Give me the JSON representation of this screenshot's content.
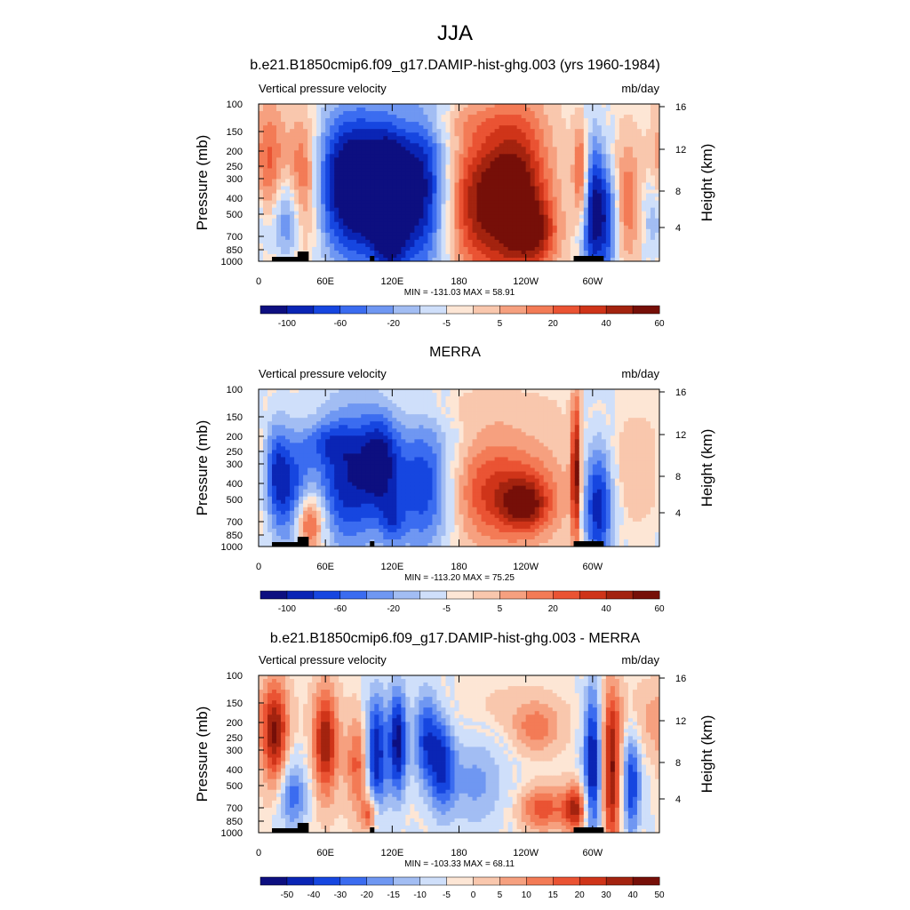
{
  "figure": {
    "title": "JJA"
  },
  "axes": {
    "pressure_label": "Pressure (mb)",
    "height_label": "Height (km)",
    "pressure_ticks": [
      100,
      150,
      200,
      250,
      300,
      400,
      500,
      700,
      850,
      1000
    ],
    "height_ticks": [
      4,
      8,
      12,
      16
    ],
    "x_ticks": [
      "0",
      "60E",
      "120E",
      "180",
      "120W",
      "60W"
    ],
    "x_tick_lon": [
      0,
      60,
      120,
      180,
      240,
      300
    ],
    "x_range": [
      0,
      360
    ]
  },
  "chart_data": [
    {
      "type": "heatmap",
      "title": "b.e21.B1850cmip6.f09_g17.DAMIP-hist-ghg.003 (yrs 1960-1984)",
      "variable": "Vertical pressure velocity",
      "units": "mb/day",
      "stats": "MIN = -131.03  MAX =  58.91",
      "colorbar_labels": [
        "-100",
        "-60",
        "-20",
        "-5",
        "5",
        "20",
        "40",
        "60"
      ]
    },
    {
      "type": "heatmap",
      "title": "MERRA",
      "variable": "Vertical pressure velocity",
      "units": "mb/day",
      "stats": "MIN = -113.20  MAX =  75.25",
      "colorbar_labels": [
        "-100",
        "-60",
        "-20",
        "-5",
        "5",
        "20",
        "40",
        "60"
      ]
    },
    {
      "type": "heatmap",
      "title": "b.e21.B1850cmip6.f09_g17.DAMIP-hist-ghg.003 - MERRA",
      "variable": "Vertical pressure velocity",
      "units": "mb/day",
      "stats": "MIN = -103.33  MAX =  68.11",
      "colorbar_labels": [
        "-50",
        "-40",
        "-30",
        "-20",
        "-15",
        "-10",
        "-5",
        "0",
        "5",
        "10",
        "15",
        "20",
        "30",
        "40",
        "50"
      ]
    }
  ],
  "colormap": [
    "#0d0f80",
    "#0a25b5",
    "#1646e0",
    "#3b6cf0",
    "#6f97f2",
    "#a2bdf3",
    "#cfdffa",
    "#fde6d5",
    "#f9c7ad",
    "#f6a07f",
    "#f37b56",
    "#ea5333",
    "#cf3419",
    "#a3230f",
    "#760f08"
  ]
}
